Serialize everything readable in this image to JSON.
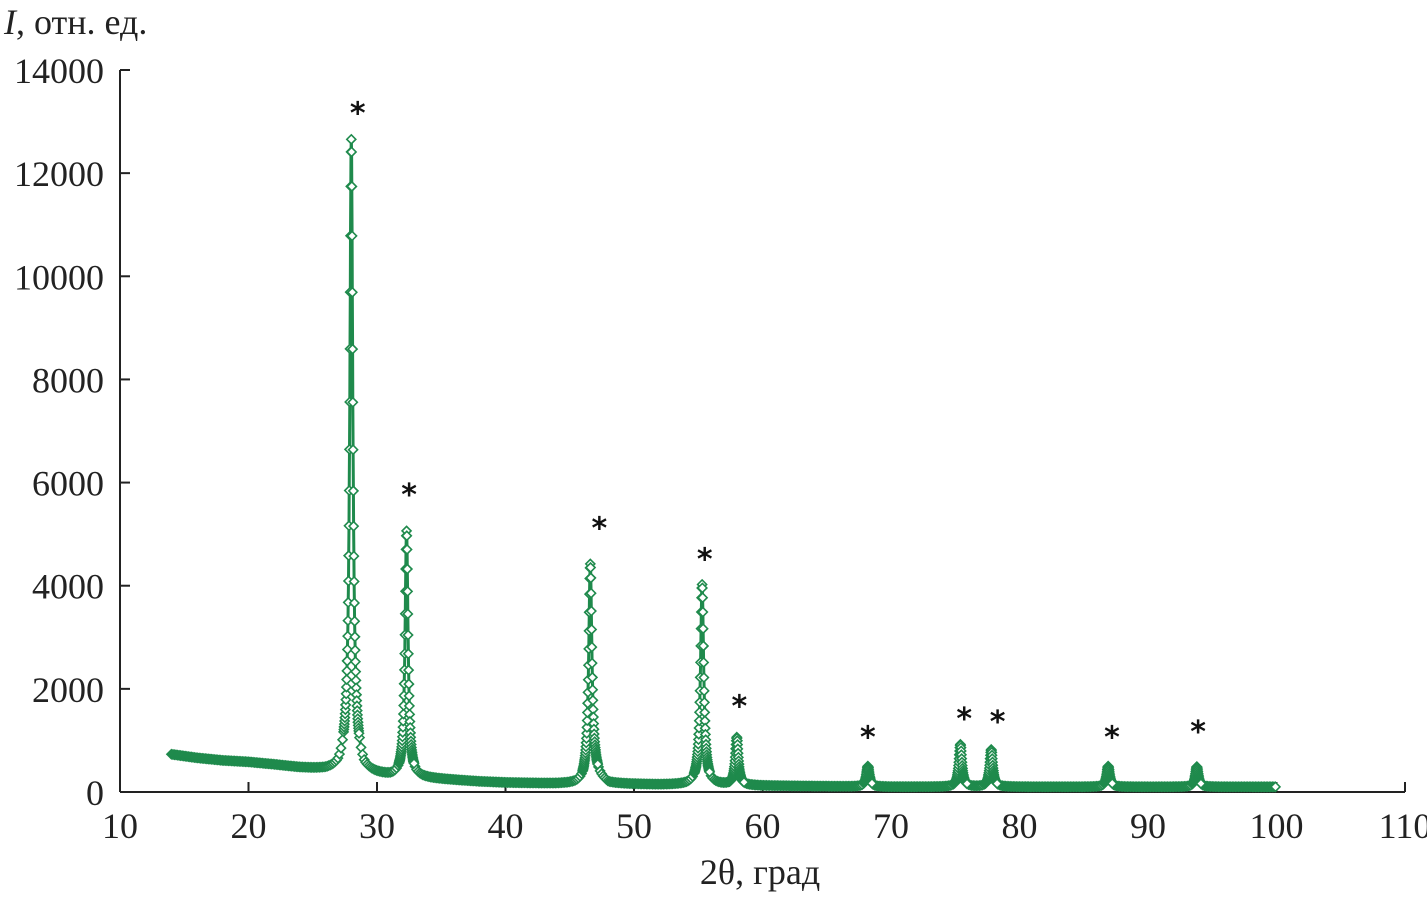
{
  "chart_data": {
    "type": "scatter",
    "title": "",
    "xlabel": "2θ, град",
    "ylabel_var": "I",
    "ylabel_unit": ", отн. ед.",
    "xlim": [
      10,
      110
    ],
    "ylim": [
      0,
      14000
    ],
    "xticks": [
      10,
      20,
      30,
      40,
      50,
      60,
      70,
      80,
      90,
      100,
      110
    ],
    "yticks": [
      0,
      2000,
      4000,
      6000,
      8000,
      10000,
      12000,
      14000
    ],
    "grid": false,
    "legend": "none",
    "series_color": "#1f8a4c",
    "marker": "diamond-open",
    "x_range": [
      14,
      100
    ],
    "background_points": [
      [
        14,
        730
      ],
      [
        16,
        660
      ],
      [
        18,
        610
      ],
      [
        20,
        580
      ],
      [
        22,
        530
      ],
      [
        24,
        470
      ],
      [
        26,
        430
      ],
      [
        27,
        440
      ],
      [
        28,
        700
      ],
      [
        29,
        390
      ],
      [
        30,
        340
      ],
      [
        31,
        300
      ],
      [
        32,
        290
      ],
      [
        33,
        280
      ],
      [
        34,
        260
      ],
      [
        36,
        230
      ],
      [
        38,
        200
      ],
      [
        40,
        180
      ],
      [
        42,
        170
      ],
      [
        44,
        160
      ],
      [
        46,
        160
      ],
      [
        47,
        300
      ],
      [
        48,
        160
      ],
      [
        50,
        150
      ],
      [
        52,
        140
      ],
      [
        54,
        140
      ],
      [
        55,
        150
      ],
      [
        56,
        140
      ],
      [
        58,
        130
      ],
      [
        60,
        120
      ],
      [
        65,
        110
      ],
      [
        70,
        100
      ],
      [
        75,
        100
      ],
      [
        80,
        100
      ],
      [
        85,
        100
      ],
      [
        90,
        100
      ],
      [
        95,
        100
      ],
      [
        100,
        100
      ]
    ],
    "peaks": [
      {
        "x": 28.0,
        "y": 12650,
        "width": 0.28
      },
      {
        "x": 32.3,
        "y": 5050,
        "width": 0.28
      },
      {
        "x": 46.6,
        "y": 4420,
        "width": 0.3
      },
      {
        "x": 55.3,
        "y": 4020,
        "width": 0.3
      },
      {
        "x": 58.0,
        "y": 1050,
        "width": 0.28
      },
      {
        "x": 68.2,
        "y": 500,
        "width": 0.28
      },
      {
        "x": 75.4,
        "y": 920,
        "width": 0.28
      },
      {
        "x": 77.8,
        "y": 820,
        "width": 0.28
      },
      {
        "x": 86.9,
        "y": 500,
        "width": 0.28
      },
      {
        "x": 93.8,
        "y": 490,
        "width": 0.28
      }
    ],
    "markers": [
      {
        "x": 28.5,
        "y": 13200,
        "symbol": "*"
      },
      {
        "x": 32.5,
        "y": 5800,
        "symbol": "*"
      },
      {
        "x": 47.3,
        "y": 5150,
        "symbol": "*"
      },
      {
        "x": 55.5,
        "y": 4550,
        "symbol": "*"
      },
      {
        "x": 58.2,
        "y": 1700,
        "symbol": "*"
      },
      {
        "x": 68.2,
        "y": 1100,
        "symbol": "*"
      },
      {
        "x": 75.7,
        "y": 1450,
        "symbol": "*"
      },
      {
        "x": 78.3,
        "y": 1400,
        "symbol": "*"
      },
      {
        "x": 87.2,
        "y": 1100,
        "symbol": "*"
      },
      {
        "x": 93.9,
        "y": 1200,
        "symbol": "*"
      }
    ]
  }
}
